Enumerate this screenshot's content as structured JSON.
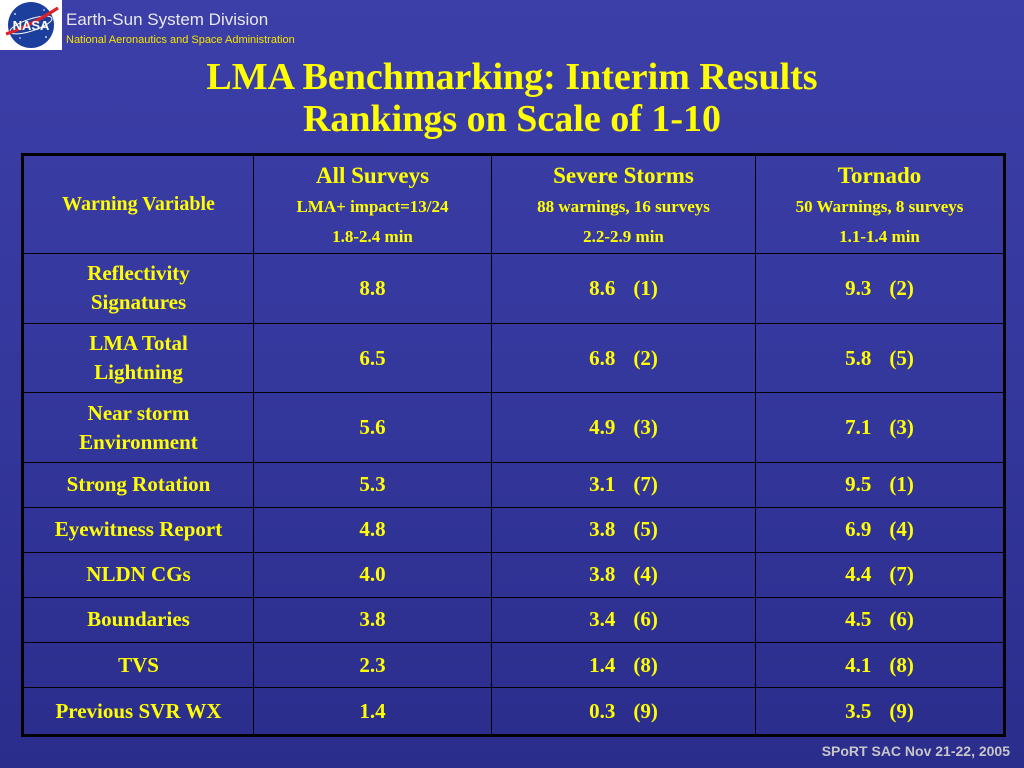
{
  "header": {
    "logo_text": "NASA",
    "org_name": "Earth-Sun System Division",
    "org_subtitle": "National Aeronautics and Space Administration"
  },
  "title": {
    "line1": "LMA Benchmarking: Interim Results",
    "line2": "Rankings on Scale of 1-10"
  },
  "table": {
    "var_header": "Warning Variable",
    "columns": [
      {
        "name": "All Surveys",
        "sub1": "LMA+ impact=13/24",
        "sub2": "1.8-2.4 min"
      },
      {
        "name": "Severe Storms",
        "sub1": "88 warnings, 16 surveys",
        "sub2": "2.2-2.9 min"
      },
      {
        "name": "Tornado",
        "sub1": "50 Warnings, 8 surveys",
        "sub2": "1.1-1.4 min"
      }
    ],
    "rows": [
      {
        "var1": "Reflectivity",
        "var2": "Signatures",
        "all": "8.8",
        "severe": "8.6",
        "severe_rank": "(1)",
        "tornado": "9.3",
        "tornado_rank": "(2)"
      },
      {
        "var1": "LMA Total",
        "var2": "Lightning",
        "all": "6.5",
        "severe": "6.8",
        "severe_rank": "(2)",
        "tornado": "5.8",
        "tornado_rank": "(5)"
      },
      {
        "var1": "Near storm",
        "var2": "Environment",
        "all": "5.6",
        "severe": "4.9",
        "severe_rank": "(3)",
        "tornado": "7.1",
        "tornado_rank": "(3)"
      },
      {
        "var1": "Strong Rotation",
        "var2": "",
        "all": "5.3",
        "severe": "3.1",
        "severe_rank": "(7)",
        "tornado": "9.5",
        "tornado_rank": "(1)"
      },
      {
        "var1": "Eyewitness Report",
        "var2": "",
        "all": "4.8",
        "severe": "3.8",
        "severe_rank": "(5)",
        "tornado": "6.9",
        "tornado_rank": "(4)"
      },
      {
        "var1": "NLDN CGs",
        "var2": "",
        "all": "4.0",
        "severe": "3.8",
        "severe_rank": "(4)",
        "tornado": "4.4",
        "tornado_rank": "(7)"
      },
      {
        "var1": "Boundaries",
        "var2": "",
        "all": "3.8",
        "severe": "3.4",
        "severe_rank": "(6)",
        "tornado": "4.5",
        "tornado_rank": "(6)"
      },
      {
        "var1": "TVS",
        "var2": "",
        "all": "2.3",
        "severe": "1.4",
        "severe_rank": "(8)",
        "tornado": "4.1",
        "tornado_rank": "(8)"
      },
      {
        "var1": "Previous SVR WX",
        "var2": "",
        "all": "1.4",
        "severe": "0.3",
        "severe_rank": "(9)",
        "tornado": "3.5",
        "tornado_rank": "(9)"
      }
    ]
  },
  "footer": {
    "text": "SPoRT SAC Nov 21-22, 2005"
  },
  "colors": {
    "background": "#3335a0",
    "text": "#ffff00",
    "footer": "#c7c7c7"
  }
}
